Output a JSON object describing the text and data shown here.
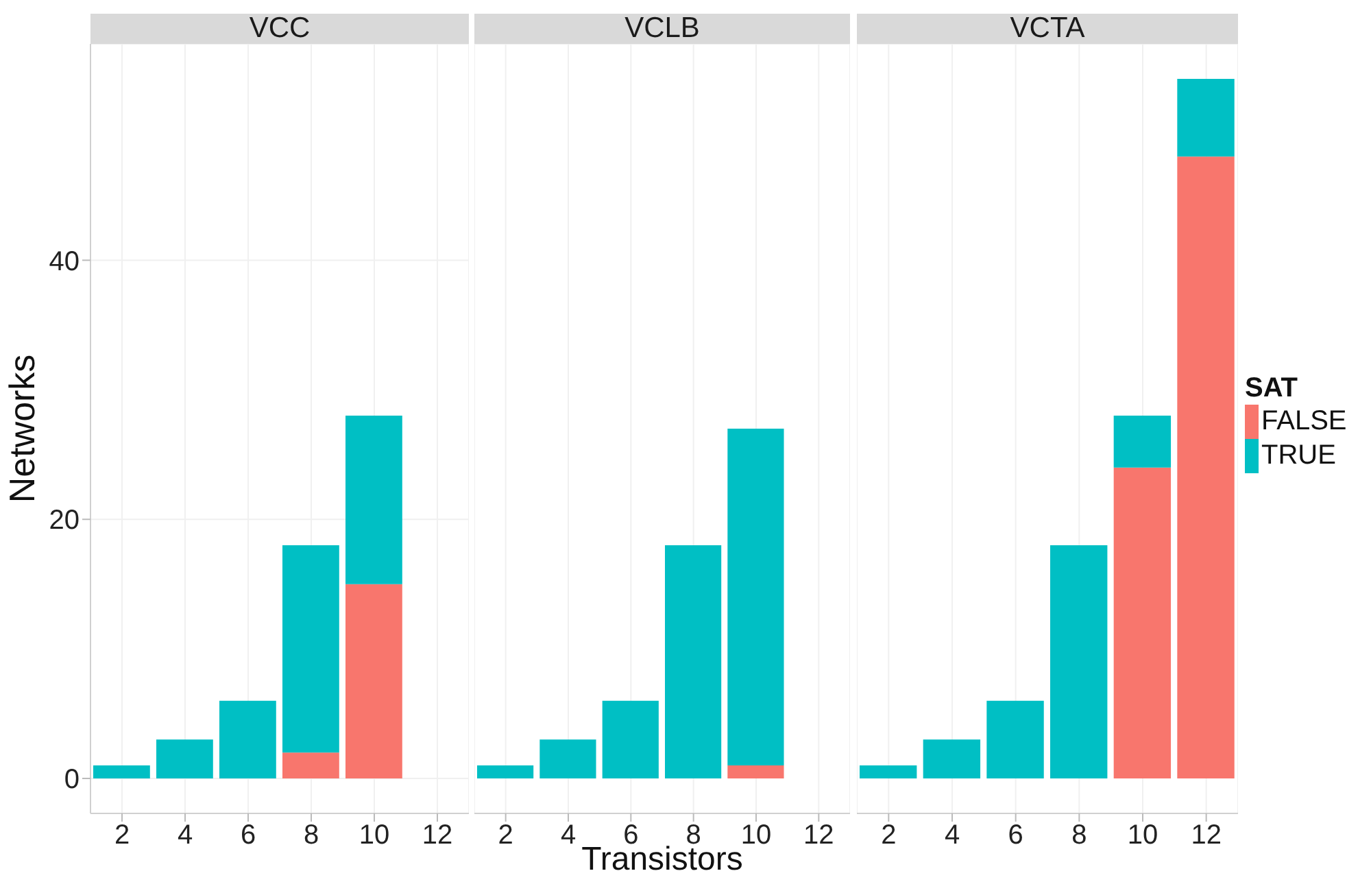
{
  "chart_data": [
    {
      "type": "bar",
      "title": "VCC",
      "ylabel": "Networks",
      "x": [
        2,
        4,
        6,
        8,
        10
      ],
      "stacked": true,
      "xlim": [
        1,
        13
      ],
      "xticks": [
        2,
        4,
        6,
        8,
        10,
        12
      ],
      "ylim": [
        -2.7,
        56.7
      ],
      "yticks": [
        0,
        20,
        40
      ],
      "grid": true,
      "series": [
        {
          "color": "#f8766d",
          "values": [
            null,
            null,
            null,
            2,
            15
          ]
        },
        {
          "color": "#00bfc4",
          "values": [
            1,
            3,
            6,
            16,
            13
          ]
        }
      ]
    },
    {
      "type": "bar",
      "title": "VCLB",
      "xlabel": "Transistors",
      "x": [
        2,
        4,
        6,
        8,
        10
      ],
      "stacked": true,
      "xlim": [
        1,
        13
      ],
      "xticks": [
        2,
        4,
        6,
        8,
        10,
        12
      ],
      "ylim": [
        -2.7,
        56.7
      ],
      "yticks": [
        0,
        20,
        40
      ],
      "grid": true,
      "tick_labels": "x",
      "series": [
        {
          "color": "#f8766d",
          "values": [
            null,
            null,
            null,
            null,
            1
          ]
        },
        {
          "color": "#00bfc4",
          "values": [
            1,
            3,
            6,
            18,
            26
          ]
        }
      ]
    },
    {
      "type": "bar",
      "title": "VCTA",
      "x": [
        2,
        4,
        6,
        8,
        10,
        12
      ],
      "stacked": true,
      "xlim": [
        1,
        13
      ],
      "xticks": [
        2,
        4,
        6,
        8,
        10,
        12
      ],
      "ylim": [
        -2.7,
        56.7
      ],
      "yticks": [
        0,
        20,
        40
      ],
      "grid": true,
      "tick_labels": "x",
      "legend": "right",
      "legend_title": "SAT",
      "series": [
        {
          "name": "FALSE",
          "color": "#f8766d",
          "values": [
            null,
            null,
            null,
            null,
            24,
            48
          ]
        },
        {
          "name": "TRUE",
          "color": "#00bfc4",
          "values": [
            1,
            3,
            6,
            18,
            4,
            6
          ]
        }
      ]
    }
  ]
}
